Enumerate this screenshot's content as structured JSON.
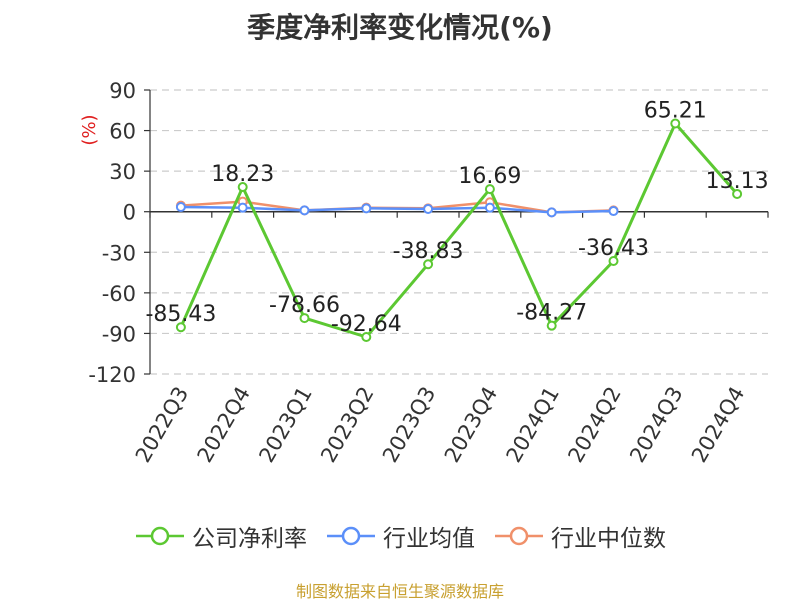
{
  "title": "季度净利率变化情况(%)",
  "source": "制图数据来自恒生聚源数据库",
  "chart_data": {
    "type": "line",
    "title": "季度净利率变化情况(%)",
    "ylabel": "(%)",
    "xlabel": "",
    "categories": [
      "2022Q3",
      "2022Q4",
      "2023Q1",
      "2023Q2",
      "2023Q3",
      "2023Q4",
      "2024Q1",
      "2024Q2",
      "2024Q3",
      "2024Q4"
    ],
    "ylim": [
      -120,
      90
    ],
    "yticks": [
      90,
      60,
      30,
      0,
      -30,
      -60,
      -90,
      -120
    ],
    "grid": true,
    "legend_position": "bottom",
    "series": [
      {
        "name": "公司净利率",
        "color": "#5cc832",
        "values": [
          -85.43,
          18.23,
          -78.66,
          -92.64,
          -38.83,
          16.69,
          -84.27,
          -36.43,
          65.21,
          13.13
        ],
        "labels": [
          "-85.43",
          "18.23",
          "-78.66",
          "-92.64",
          "-38.83",
          "16.69",
          "-84.27",
          "-36.43",
          "65.21",
          "13.13"
        ]
      },
      {
        "name": "行业均值",
        "color": "#5b8ff9",
        "values": [
          3.5,
          3.0,
          1.0,
          2.5,
          2.0,
          3.0,
          -0.5,
          0.5,
          null,
          null
        ]
      },
      {
        "name": "行业中位数",
        "color": "#f0906a",
        "values": [
          4.5,
          7.5,
          1.0,
          3.0,
          2.5,
          7.0,
          -0.5,
          1.0,
          null,
          null
        ]
      }
    ]
  }
}
